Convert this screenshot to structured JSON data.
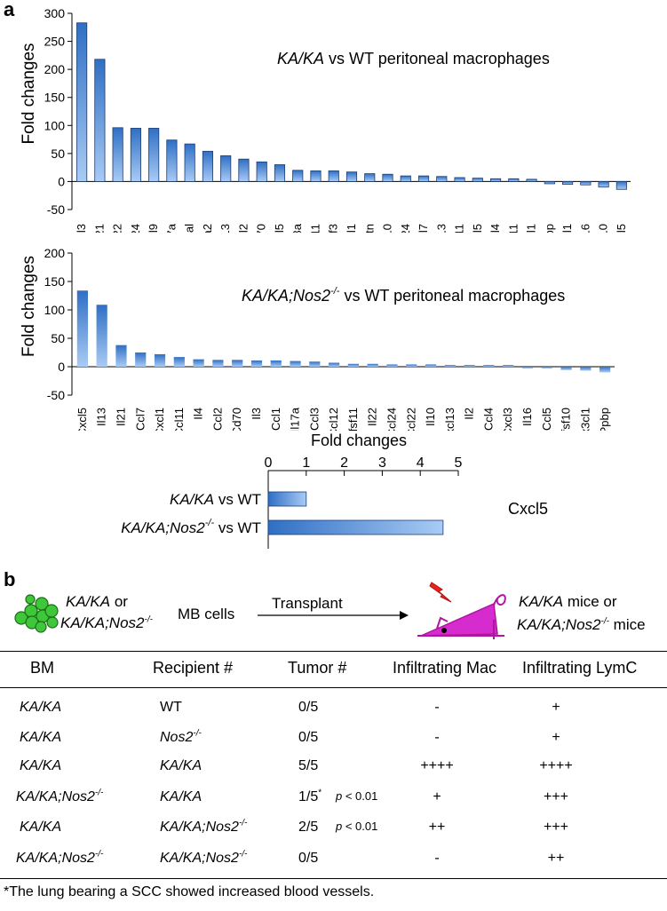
{
  "colors": {
    "bar_dark": "#2f6fc4",
    "bar_light": "#a9cbf5",
    "magenta": "#d62ccf",
    "red": "#e8241c",
    "green": "#3fc73a"
  },
  "panel_a": {
    "label": "a"
  },
  "panel_b": {
    "label": "b"
  },
  "chart_data": [
    {
      "type": "bar",
      "title_italic": "KA/KA",
      "title_rest": " vs WT peritoneal macrophages",
      "ylabel": "Fold changes",
      "ylim": [
        -50,
        300
      ],
      "yticks": [
        -50,
        0,
        50,
        100,
        150,
        200,
        250,
        300
      ],
      "categories": [
        "Il3",
        "Il21",
        "Il22",
        "Il24",
        "Il9",
        "Il17a",
        "Nodal",
        "Ifna2",
        "Il13",
        "Il2",
        "Cd70",
        "Cxcl5",
        "Il23a",
        "Cxcl11",
        "Csf3",
        "Ccl1",
        "Mstn",
        "Il10",
        "Ccl24",
        "Ccl7",
        "Cxcl13",
        "Tnfsf11",
        "Il5",
        "Il4",
        "Il11",
        "Cxcl1",
        "Ppbp",
        "Cx3cl1",
        "Cxcl16",
        "Tnfsf10",
        "Ccl5"
      ],
      "values": [
        283,
        218,
        96,
        95,
        95,
        74,
        67,
        54,
        46,
        40,
        35,
        30,
        20,
        19,
        19,
        17,
        14,
        13,
        10,
        10,
        9,
        7,
        6,
        5,
        5,
        4,
        -4,
        -5,
        -6,
        -10,
        -14
      ]
    },
    {
      "type": "bar",
      "title_italic": "KA/KA;Nos2",
      "title_sup": "-/-",
      "title_rest": " vs WT peritoneal macrophages",
      "ylabel": "Fold changes",
      "ylim": [
        -50,
        200
      ],
      "yticks": [
        -50,
        0,
        50,
        100,
        150,
        200
      ],
      "categories": [
        "Cxcl5",
        "Il13",
        "Il21",
        "Ccl7",
        "Cxcl1",
        "Ccl11",
        "Il4",
        "Ccl2",
        "Cd70",
        "Il3",
        "Ccl1",
        "Il17a",
        "Ccl3",
        "Ccl12",
        "Tnfsf11",
        "Il22",
        "Ccl24",
        "Ccl22",
        "Il10",
        "Cxcl13",
        "Il2",
        "Ccl4",
        "Cxcl3",
        "Il16",
        "Ccl5",
        "Tnfsf10",
        "Cx3cl1",
        "Ppbp"
      ],
      "values": [
        134,
        109,
        38,
        25,
        22,
        17,
        13,
        12,
        12,
        11,
        11,
        10,
        9,
        7,
        5,
        5,
        4,
        4,
        4,
        3,
        3,
        3,
        3,
        -3,
        -3,
        -6,
        -7,
        -10
      ]
    },
    {
      "type": "bar",
      "orientation": "horizontal",
      "xlabel": "Fold changes",
      "xlim": [
        0,
        5
      ],
      "xticks": [
        0,
        1,
        2,
        3,
        4,
        5
      ],
      "series_label": "Cxcl5",
      "categories": [
        {
          "italic": "KA/KA",
          "rest": " vs WT"
        },
        {
          "italic": "KA/KA;Nos2",
          "sup": "-/-",
          "rest": " vs WT"
        }
      ],
      "values": [
        1.0,
        4.6
      ]
    }
  ],
  "schema": {
    "donor_a": "KA/KA",
    "or": " or",
    "donor_b": "KA/KA;Nos2",
    "donor_b_sup": "-/-",
    "cells": "MB cells",
    "arrow_label": "Transplant",
    "recipient_a": "KA/KA",
    "recipient_a_rest": " mice or",
    "recipient_b": "KA/KA;Nos2",
    "recipient_b_sup": "-/-",
    "recipient_b_rest": " mice"
  },
  "table": {
    "headers": [
      "BM",
      "Recipient #",
      "Tumor #",
      "Infiltrating Mac",
      "Infiltrating LymC"
    ],
    "rows": [
      {
        "bm": "KA/KA",
        "bm_sup": "",
        "rec": "WT",
        "rec_sup": "",
        "rec_italic": false,
        "tumor": "0/5",
        "star": "",
        "p": "",
        "mac": "-",
        "lymc": "+"
      },
      {
        "bm": "KA/KA",
        "bm_sup": "",
        "rec": "Nos2",
        "rec_sup": "-/-",
        "rec_italic": true,
        "tumor": "0/5",
        "star": "",
        "p": "",
        "mac": "-",
        "lymc": "+"
      },
      {
        "bm": "KA/KA",
        "bm_sup": "",
        "rec": "KA/KA",
        "rec_sup": "",
        "rec_italic": true,
        "tumor": "5/5",
        "star": "",
        "p": "",
        "mac": "++++",
        "lymc": "++++"
      },
      {
        "bm": "KA/KA;Nos2",
        "bm_sup": "-/-",
        "rec": "KA/KA",
        "rec_sup": "",
        "rec_italic": true,
        "tumor": "1/5",
        "star": "*",
        "p": "p < 0.01",
        "mac": "+",
        "lymc": "+++"
      },
      {
        "bm": "KA/KA",
        "bm_sup": "",
        "rec": "KA/KA;Nos2",
        "rec_sup": "-/-",
        "rec_italic": true,
        "tumor": "2/5",
        "star": "",
        "p": "p < 0.01",
        "mac": "++",
        "lymc": "+++"
      },
      {
        "bm": "KA/KA;Nos2",
        "bm_sup": "-/-",
        "rec": "KA/KA;Nos2",
        "rec_sup": "-/-",
        "rec_italic": true,
        "tumor": "0/5",
        "star": "",
        "p": "",
        "mac": "-",
        "lymc": "++"
      }
    ],
    "footnote": "*The lung bearing a SCC showed increased blood vessels."
  }
}
